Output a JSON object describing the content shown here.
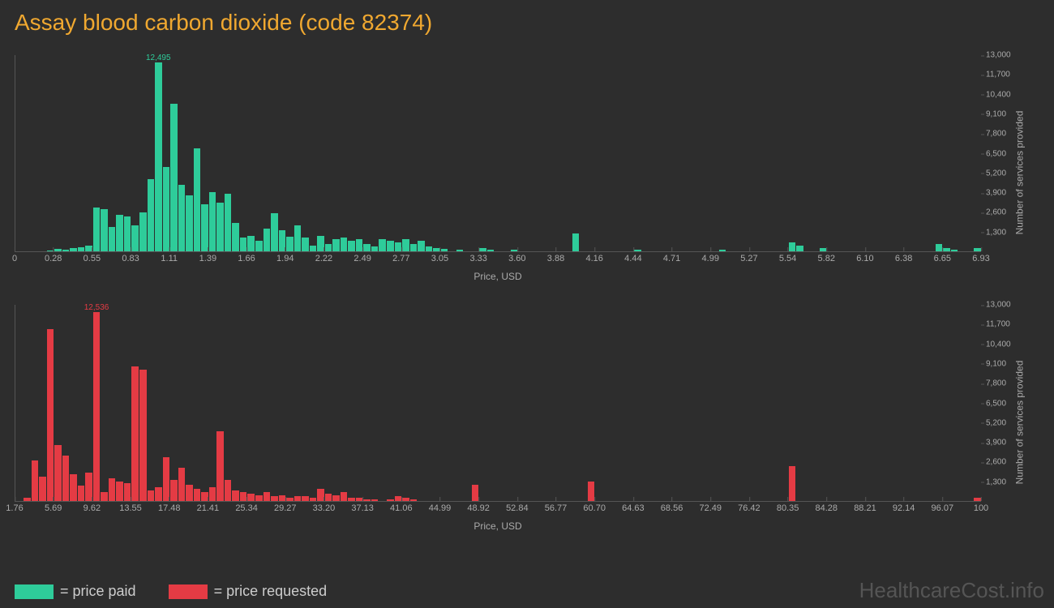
{
  "title": "Assay blood carbon dioxide (code 82374)",
  "background_color": "#2d2d2d",
  "title_color": "#f0a830",
  "axis_color": "#555555",
  "tick_text_color": "#aaaaaa",
  "watermark": "HealthcareCost.info",
  "watermark_color": "#555555",
  "legend": [
    {
      "color": "#2ecc9a",
      "label": "= price paid"
    },
    {
      "color": "#e43b44",
      "label": "= price requested"
    }
  ],
  "chart_top": {
    "type": "histogram",
    "bar_color": "#2ecc9a",
    "x_label": "Price, USD",
    "y_label": "Number of services provided",
    "y_max": 13000,
    "y_ticks": [
      1300,
      2600,
      3900,
      5200,
      6500,
      7800,
      9100,
      10400,
      11700,
      13000
    ],
    "x_min": 0,
    "x_max": 6.93,
    "x_ticks": [
      "0",
      "0.28",
      "0.55",
      "0.83",
      "1.11",
      "1.39",
      "1.66",
      "1.94",
      "2.22",
      "2.49",
      "2.77",
      "3.05",
      "3.33",
      "3.60",
      "3.88",
      "4.16",
      "4.44",
      "4.71",
      "4.99",
      "5.27",
      "5.54",
      "5.82",
      "6.10",
      "6.38",
      "6.65",
      "6.93"
    ],
    "peak_label": "12,495",
    "peak_index": 18,
    "values": [
      0,
      0,
      0,
      0,
      50,
      150,
      100,
      200,
      250,
      400,
      2900,
      2800,
      1600,
      2400,
      2300,
      1700,
      2600,
      4800,
      12495,
      5600,
      9800,
      4400,
      3700,
      6800,
      3100,
      3900,
      3200,
      3800,
      1900,
      900,
      1000,
      700,
      1500,
      2500,
      1400,
      950,
      1700,
      900,
      400,
      1000,
      500,
      800,
      900,
      700,
      800,
      500,
      300,
      800,
      700,
      600,
      800,
      500,
      700,
      300,
      200,
      150,
      0,
      100,
      0,
      0,
      200,
      100,
      0,
      0,
      100,
      0,
      0,
      0,
      0,
      0,
      0,
      0,
      1200,
      0,
      0,
      0,
      0,
      0,
      0,
      0,
      100,
      0,
      0,
      0,
      0,
      0,
      0,
      0,
      0,
      0,
      0,
      100,
      0,
      0,
      0,
      0,
      0,
      0,
      0,
      0,
      600,
      400,
      0,
      0,
      200,
      0,
      0,
      0,
      0,
      0,
      0,
      0,
      0,
      0,
      0,
      0,
      0,
      0,
      0,
      500,
      200,
      100,
      0,
      0,
      200
    ]
  },
  "chart_bottom": {
    "type": "histogram",
    "bar_color": "#e43b44",
    "x_label": "Price, USD",
    "y_label": "Number of services provided",
    "y_max": 13000,
    "y_ticks": [
      1300,
      2600,
      3900,
      5200,
      6500,
      7800,
      9100,
      10400,
      11700,
      13000
    ],
    "x_min": 1.76,
    "x_max": 100,
    "x_ticks": [
      "1.76",
      "5.69",
      "9.62",
      "13.55",
      "17.48",
      "21.41",
      "25.34",
      "29.27",
      "33.20",
      "37.13",
      "41.06",
      "44.99",
      "48.92",
      "52.84",
      "56.77",
      "60.70",
      "64.63",
      "68.56",
      "72.49",
      "76.42",
      "80.35",
      "84.28",
      "88.21",
      "92.14",
      "96.07",
      "100"
    ],
    "peak_label": "12,536",
    "peak_index": 10,
    "values": [
      0,
      200,
      2700,
      1600,
      11400,
      3700,
      3000,
      1800,
      1000,
      1900,
      12536,
      600,
      1500,
      1300,
      1200,
      8900,
      8700,
      700,
      900,
      2900,
      1400,
      2200,
      1100,
      800,
      600,
      900,
      4600,
      1400,
      700,
      600,
      500,
      400,
      600,
      300,
      400,
      200,
      300,
      300,
      200,
      800,
      500,
      400,
      600,
      200,
      200,
      100,
      100,
      0,
      100,
      300,
      200,
      100,
      0,
      0,
      0,
      0,
      0,
      0,
      0,
      1100,
      0,
      0,
      0,
      0,
      0,
      0,
      0,
      0,
      0,
      0,
      0,
      0,
      0,
      0,
      1300,
      0,
      0,
      0,
      0,
      0,
      0,
      0,
      0,
      0,
      0,
      0,
      0,
      0,
      0,
      0,
      0,
      0,
      0,
      0,
      0,
      0,
      0,
      0,
      0,
      0,
      2300,
      0,
      0,
      0,
      0,
      0,
      0,
      0,
      0,
      0,
      0,
      0,
      0,
      0,
      0,
      0,
      0,
      0,
      0,
      0,
      0,
      0,
      0,
      0,
      200
    ]
  }
}
